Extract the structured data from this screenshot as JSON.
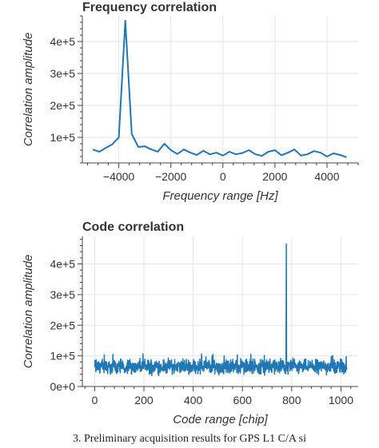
{
  "chart_data": [
    {
      "type": "line",
      "title": "Frequency correlation",
      "xlabel": "Frequency range [Hz]",
      "ylabel": "Correlation amplitude",
      "xlim": [
        -5400,
        5200
      ],
      "ylim": [
        20000,
        480000
      ],
      "xticks": [
        -4000,
        -2000,
        0,
        2000,
        4000
      ],
      "xtick_labels": [
        "−4000",
        "−2000",
        "0",
        "2000",
        "4000"
      ],
      "yticks": [
        100000,
        200000,
        300000,
        400000
      ],
      "ytick_labels": [
        "1e+5",
        "2e+5",
        "3e+5",
        "4e+5"
      ],
      "grid": true,
      "color": "#1f77b4",
      "series": [
        {
          "name": "",
          "x": [
            -5000,
            -4750,
            -4500,
            -4250,
            -4000,
            -3750,
            -3500,
            -3250,
            -3000,
            -2750,
            -2500,
            -2250,
            -2000,
            -1750,
            -1500,
            -1250,
            -1000,
            -750,
            -500,
            -250,
            0,
            250,
            500,
            750,
            1000,
            1250,
            1500,
            1750,
            2000,
            2250,
            2500,
            2750,
            3000,
            3250,
            3500,
            3750,
            4000,
            4250,
            4500,
            4750
          ],
          "y": [
            62000,
            55000,
            67000,
            78000,
            100000,
            465000,
            110000,
            70000,
            72000,
            62000,
            55000,
            80000,
            60000,
            48000,
            62000,
            52000,
            45000,
            58000,
            47000,
            52000,
            43000,
            55000,
            47000,
            51000,
            60000,
            47000,
            42000,
            55000,
            60000,
            44000,
            52000,
            62000,
            43000,
            47000,
            57000,
            52000,
            40000,
            50000,
            45000,
            38000
          ]
        }
      ]
    },
    {
      "type": "line",
      "title": "Code correlation",
      "xlabel": "Code range [chip]",
      "ylabel": "Correlation amplitude",
      "xlim": [
        -50,
        1070
      ],
      "ylim": [
        0,
        490000
      ],
      "xticks": [
        0,
        200,
        400,
        600,
        800,
        1000
      ],
      "xtick_labels": [
        "0",
        "200",
        "400",
        "600",
        "800",
        "1000"
      ],
      "yticks": [
        0,
        100000,
        200000,
        300000,
        400000
      ],
      "ytick_labels": [
        "0e+0",
        "1e+5",
        "2e+5",
        "3e+5",
        "4e+5"
      ],
      "grid": true,
      "color": "#1f77b4",
      "noise_floor": {
        "min": 35000,
        "max": 95000
      },
      "x_range": [
        0,
        1023
      ],
      "peak": {
        "x": 778,
        "y": 465000
      }
    }
  ],
  "caption": "3. Preliminary acquisition results for GPS L1 C/A si"
}
